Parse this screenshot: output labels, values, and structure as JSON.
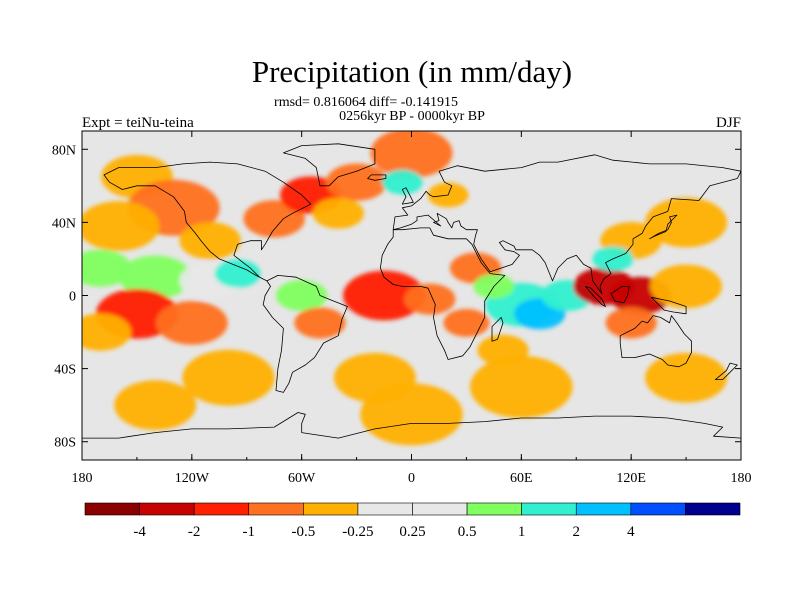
{
  "chart_data": {
    "type": "heatmap",
    "title": "Precipitation (in mm/day)",
    "stats_line": "rmsd= 0.816064 diff= -0.141915",
    "period": "0256kyr BP - 0000kyr BP",
    "left_label": "Expt = teiNu-teina",
    "right_label": "DJF",
    "x_ticks": [
      {
        "value": -180,
        "label": "180"
      },
      {
        "value": -120,
        "label": "120W"
      },
      {
        "value": -60,
        "label": "60W"
      },
      {
        "value": 0,
        "label": "0"
      },
      {
        "value": 60,
        "label": "60E"
      },
      {
        "value": 120,
        "label": "120E"
      },
      {
        "value": 180,
        "label": "180"
      }
    ],
    "y_ticks": [
      {
        "value": 80,
        "label": "80N"
      },
      {
        "value": 40,
        "label": "40N"
      },
      {
        "value": 0,
        "label": "0"
      },
      {
        "value": -40,
        "label": "40S"
      },
      {
        "value": -80,
        "label": "80S"
      }
    ],
    "xlim": [
      -180,
      180
    ],
    "ylim": [
      -90,
      90
    ],
    "colorbar": {
      "colors": [
        "#8c0000",
        "#c80000",
        "#ff2000",
        "#ff7020",
        "#ffb000",
        "#e8e8e8",
        "#e8e8e8",
        "#80ff60",
        "#30f0d0",
        "#00c0ff",
        "#0050ff",
        "#000090"
      ],
      "labels": [
        "-4",
        "-2",
        "-1",
        "-0.5",
        "-0.25",
        "0.25",
        "0.5",
        "1",
        "2",
        "4"
      ]
    },
    "anomalies": [
      {
        "lon": -150,
        "lat": 65,
        "r": 14,
        "value": -0.4
      },
      {
        "lon": -130,
        "lat": 48,
        "r": 18,
        "value": -0.7
      },
      {
        "lon": -160,
        "lat": 38,
        "r": 16,
        "value": -0.5
      },
      {
        "lon": -110,
        "lat": 30,
        "r": 12,
        "value": -0.3
      },
      {
        "lon": -75,
        "lat": 42,
        "r": 12,
        "value": -0.7
      },
      {
        "lon": -55,
        "lat": 55,
        "r": 12,
        "value": -1.2
      },
      {
        "lon": -30,
        "lat": 62,
        "r": 12,
        "value": -1.0
      },
      {
        "lon": -40,
        "lat": 45,
        "r": 10,
        "value": -0.3
      },
      {
        "lon": 0,
        "lat": 78,
        "r": 16,
        "value": -0.6
      },
      {
        "lon": -5,
        "lat": 62,
        "r": 8,
        "value": 1.5
      },
      {
        "lon": 20,
        "lat": 55,
        "r": 8,
        "value": -0.3
      },
      {
        "lon": 150,
        "lat": 40,
        "r": 16,
        "value": -0.4
      },
      {
        "lon": 120,
        "lat": 30,
        "r": 12,
        "value": -0.3
      },
      {
        "lon": -170,
        "lat": 15,
        "r": 12,
        "value": 0.6
      },
      {
        "lon": -140,
        "lat": 10,
        "r": 14,
        "value": 0.6
      },
      {
        "lon": -110,
        "lat": 8,
        "r": 12,
        "value": 0.4
      },
      {
        "lon": -95,
        "lat": 12,
        "r": 9,
        "value": 1.5
      },
      {
        "lon": -150,
        "lat": -10,
        "r": 16,
        "value": -1.2
      },
      {
        "lon": -120,
        "lat": -15,
        "r": 14,
        "value": -0.6
      },
      {
        "lon": -170,
        "lat": -20,
        "r": 12,
        "value": -0.5
      },
      {
        "lon": -60,
        "lat": 0,
        "r": 10,
        "value": 0.8
      },
      {
        "lon": -50,
        "lat": -15,
        "r": 10,
        "value": -0.6
      },
      {
        "lon": -15,
        "lat": 0,
        "r": 16,
        "value": -1.2
      },
      {
        "lon": 10,
        "lat": -2,
        "r": 10,
        "value": -0.8
      },
      {
        "lon": 30,
        "lat": -15,
        "r": 9,
        "value": -0.7
      },
      {
        "lon": 35,
        "lat": 15,
        "r": 10,
        "value": -0.6
      },
      {
        "lon": 60,
        "lat": -5,
        "r": 14,
        "value": 1.8
      },
      {
        "lon": 70,
        "lat": -10,
        "r": 10,
        "value": 3.0
      },
      {
        "lon": 85,
        "lat": 0,
        "r": 10,
        "value": 1.2
      },
      {
        "lon": 50,
        "lat": -30,
        "r": 10,
        "value": -0.5
      },
      {
        "lon": 45,
        "lat": 5,
        "r": 8,
        "value": 0.6
      },
      {
        "lon": 105,
        "lat": 5,
        "r": 12,
        "value": -3.0
      },
      {
        "lon": 125,
        "lat": 0,
        "r": 12,
        "value": -2.5
      },
      {
        "lon": 110,
        "lat": 20,
        "r": 8,
        "value": 1.5
      },
      {
        "lon": 150,
        "lat": 5,
        "r": 14,
        "value": -0.5
      },
      {
        "lon": 120,
        "lat": -15,
        "r": 10,
        "value": -1.0
      },
      {
        "lon": -100,
        "lat": -45,
        "r": 18,
        "value": -0.3
      },
      {
        "lon": -20,
        "lat": -45,
        "r": 16,
        "value": -0.3
      },
      {
        "lon": 60,
        "lat": -50,
        "r": 20,
        "value": -0.3
      },
      {
        "lon": 150,
        "lat": -45,
        "r": 16,
        "value": -0.3
      },
      {
        "lon": -140,
        "lat": -60,
        "r": 16,
        "value": -0.3
      },
      {
        "lon": 0,
        "lat": -65,
        "r": 20,
        "value": -0.3
      }
    ],
    "land_outlines": [
      [
        [
          -168,
          66
        ],
        [
          -160,
          70
        ],
        [
          -140,
          70
        ],
        [
          -125,
          72
        ],
        [
          -110,
          73
        ],
        [
          -95,
          72
        ],
        [
          -80,
          68
        ],
        [
          -70,
          62
        ],
        [
          -60,
          55
        ],
        [
          -55,
          50
        ],
        [
          -65,
          45
        ],
        [
          -70,
          42
        ],
        [
          -76,
          35
        ],
        [
          -80,
          28
        ],
        [
          -82,
          25
        ],
        [
          -82,
          30
        ],
        [
          -88,
          30
        ],
        [
          -95,
          28
        ],
        [
          -97,
          22
        ],
        [
          -92,
          18
        ],
        [
          -88,
          15
        ],
        [
          -83,
          10
        ],
        [
          -79,
          8
        ],
        [
          -85,
          11
        ],
        [
          -90,
          14
        ],
        [
          -95,
          16
        ],
        [
          -105,
          20
        ],
        [
          -110,
          24
        ],
        [
          -115,
          30
        ],
        [
          -118,
          34
        ],
        [
          -123,
          40
        ],
        [
          -124,
          46
        ],
        [
          -130,
          54
        ],
        [
          -140,
          60
        ],
        [
          -150,
          60
        ],
        [
          -158,
          58
        ],
        [
          -165,
          62
        ],
        [
          -168,
          66
        ]
      ],
      [
        [
          -79,
          8
        ],
        [
          -73,
          11
        ],
        [
          -63,
          10
        ],
        [
          -52,
          5
        ],
        [
          -50,
          0
        ],
        [
          -45,
          -2
        ],
        [
          -35,
          -6
        ],
        [
          -38,
          -13
        ],
        [
          -40,
          -22
        ],
        [
          -48,
          -26
        ],
        [
          -53,
          -34
        ],
        [
          -58,
          -38
        ],
        [
          -65,
          -42
        ],
        [
          -67,
          -48
        ],
        [
          -70,
          -53
        ],
        [
          -74,
          -52
        ],
        [
          -73,
          -40
        ],
        [
          -71,
          -30
        ],
        [
          -70,
          -18
        ],
        [
          -76,
          -12
        ],
        [
          -81,
          -5
        ],
        [
          -80,
          0
        ],
        [
          -77,
          5
        ],
        [
          -79,
          8
        ]
      ],
      [
        [
          -50,
          60
        ],
        [
          -45,
          60
        ],
        [
          -40,
          65
        ],
        [
          -30,
          68
        ],
        [
          -20,
          72
        ],
        [
          -20,
          80
        ],
        [
          -40,
          83
        ],
        [
          -60,
          82
        ],
        [
          -70,
          78
        ],
        [
          -58,
          75
        ],
        [
          -52,
          70
        ],
        [
          -50,
          60
        ]
      ],
      [
        [
          -10,
          36
        ],
        [
          -5,
          36
        ],
        [
          5,
          37
        ],
        [
          10,
          37
        ],
        [
          12,
          33
        ],
        [
          20,
          31
        ],
        [
          30,
          31
        ],
        [
          33,
          28
        ],
        [
          38,
          18
        ],
        [
          43,
          12
        ],
        [
          51,
          11
        ],
        [
          45,
          5
        ],
        [
          40,
          -3
        ],
        [
          40,
          -12
        ],
        [
          35,
          -22
        ],
        [
          32,
          -28
        ],
        [
          28,
          -33
        ],
        [
          20,
          -35
        ],
        [
          18,
          -30
        ],
        [
          14,
          -22
        ],
        [
          12,
          -12
        ],
        [
          13,
          -5
        ],
        [
          9,
          4
        ],
        [
          5,
          5
        ],
        [
          -5,
          5
        ],
        [
          -10,
          6
        ],
        [
          -15,
          10
        ],
        [
          -17,
          15
        ],
        [
          -16,
          22
        ],
        [
          -13,
          28
        ],
        [
          -10,
          32
        ],
        [
          -10,
          36
        ]
      ],
      [
        [
          -10,
          36
        ],
        [
          -9,
          43
        ],
        [
          -2,
          44
        ],
        [
          -5,
          48
        ],
        [
          0,
          49
        ],
        [
          5,
          53
        ],
        [
          8,
          57
        ],
        [
          10,
          55
        ],
        [
          12,
          54
        ],
        [
          20,
          55
        ],
        [
          22,
          60
        ],
        [
          18,
          62
        ],
        [
          15,
          68
        ],
        [
          25,
          71
        ],
        [
          40,
          68
        ],
        [
          60,
          70
        ],
        [
          70,
          73
        ],
        [
          80,
          73
        ],
        [
          100,
          77
        ],
        [
          110,
          74
        ],
        [
          130,
          72
        ],
        [
          150,
          72
        ],
        [
          170,
          70
        ],
        [
          180,
          68
        ],
        [
          178,
          64
        ],
        [
          163,
          60
        ],
        [
          157,
          52
        ],
        [
          142,
          53
        ],
        [
          140,
          46
        ],
        [
          132,
          43
        ],
        [
          128,
          38
        ],
        [
          126,
          34
        ],
        [
          121,
          31
        ],
        [
          121,
          28
        ],
        [
          117,
          23
        ],
        [
          110,
          20
        ],
        [
          106,
          18
        ],
        [
          109,
          12
        ],
        [
          105,
          9
        ],
        [
          103,
          5
        ],
        [
          104,
          1
        ],
        [
          99,
          8
        ],
        [
          98,
          15
        ],
        [
          94,
          17
        ],
        [
          90,
          22
        ],
        [
          85,
          20
        ],
        [
          80,
          15
        ],
        [
          77,
          8
        ],
        [
          73,
          18
        ],
        [
          70,
          22
        ],
        [
          66,
          25
        ],
        [
          57,
          25
        ],
        [
          56,
          27
        ],
        [
          50,
          30
        ],
        [
          48,
          29
        ],
        [
          51,
          25
        ],
        [
          56,
          24
        ],
        [
          59,
          22
        ],
        [
          55,
          17
        ],
        [
          43,
          13
        ],
        [
          38,
          20
        ],
        [
          34,
          28
        ],
        [
          35,
          33
        ],
        [
          36,
          36
        ],
        [
          30,
          36
        ],
        [
          27,
          38
        ],
        [
          26,
          41
        ],
        [
          23,
          40
        ],
        [
          22,
          37
        ],
        [
          20,
          40
        ],
        [
          19,
          42
        ],
        [
          14,
          45
        ],
        [
          15,
          41
        ],
        [
          12,
          40
        ],
        [
          16,
          38
        ],
        [
          9,
          44
        ],
        [
          3,
          43
        ],
        [
          3,
          41
        ],
        [
          0,
          39
        ],
        [
          -6,
          37
        ],
        [
          -10,
          36
        ]
      ],
      [
        [
          114,
          -22
        ],
        [
          114,
          -26
        ],
        [
          115,
          -34
        ],
        [
          122,
          -34
        ],
        [
          130,
          -32
        ],
        [
          137,
          -35
        ],
        [
          140,
          -38
        ],
        [
          146,
          -39
        ],
        [
          150,
          -37
        ],
        [
          153,
          -31
        ],
        [
          153,
          -25
        ],
        [
          149,
          -21
        ],
        [
          145,
          -15
        ],
        [
          142,
          -11
        ],
        [
          141,
          -15
        ],
        [
          136,
          -12
        ],
        [
          132,
          -11
        ],
        [
          129,
          -15
        ],
        [
          126,
          -14
        ],
        [
          122,
          -18
        ],
        [
          114,
          -22
        ]
      ],
      [
        [
          95,
          5
        ],
        [
          98,
          4
        ],
        [
          104,
          -2
        ],
        [
          106,
          -6
        ],
        [
          104,
          -5
        ],
        [
          100,
          -1
        ],
        [
          95,
          5
        ]
      ],
      [
        [
          109,
          1
        ],
        [
          115,
          5
        ],
        [
          119,
          5
        ],
        [
          118,
          0
        ],
        [
          116,
          -4
        ],
        [
          111,
          -3
        ],
        [
          109,
          1
        ]
      ],
      [
        [
          131,
          -1
        ],
        [
          141,
          -3
        ],
        [
          150,
          -6
        ],
        [
          150,
          -10
        ],
        [
          143,
          -9
        ],
        [
          138,
          -8
        ],
        [
          131,
          -1
        ]
      ],
      [
        [
          130,
          31
        ],
        [
          135,
          34
        ],
        [
          140,
          36
        ],
        [
          142,
          40
        ],
        [
          141,
          43
        ],
        [
          145,
          44
        ],
        [
          140,
          39
        ],
        [
          139,
          35
        ],
        [
          134,
          33
        ],
        [
          130,
          31
        ]
      ],
      [
        [
          -5,
          50
        ],
        [
          -3,
          54
        ],
        [
          -5,
          58
        ],
        [
          -3,
          59
        ],
        [
          0,
          53
        ],
        [
          1,
          51
        ],
        [
          -5,
          50
        ]
      ],
      [
        [
          44,
          -25
        ],
        [
          47,
          -24
        ],
        [
          50,
          -15
        ],
        [
          49,
          -12
        ],
        [
          44,
          -17
        ],
        [
          44,
          -25
        ]
      ],
      [
        [
          166,
          -46
        ],
        [
          172,
          -41
        ],
        [
          174,
          -37
        ],
        [
          178,
          -38
        ],
        [
          174,
          -42
        ],
        [
          170,
          -46
        ],
        [
          166,
          -46
        ]
      ],
      [
        [
          -24,
          64
        ],
        [
          -22,
          66
        ],
        [
          -14,
          66
        ],
        [
          -14,
          64
        ],
        [
          -20,
          63
        ],
        [
          -24,
          64
        ]
      ]
    ],
    "antarctica": [
      [
        -180,
        -78
      ],
      [
        -160,
        -78
      ],
      [
        -140,
        -75
      ],
      [
        -120,
        -73
      ],
      [
        -100,
        -73
      ],
      [
        -75,
        -72
      ],
      [
        -62,
        -64
      ],
      [
        -58,
        -65
      ],
      [
        -60,
        -70
      ],
      [
        -60,
        -75
      ],
      [
        -40,
        -78
      ],
      [
        -20,
        -73
      ],
      [
        0,
        -70
      ],
      [
        20,
        -70
      ],
      [
        40,
        -69
      ],
      [
        60,
        -67
      ],
      [
        80,
        -67
      ],
      [
        100,
        -66
      ],
      [
        120,
        -66
      ],
      [
        140,
        -67
      ],
      [
        160,
        -70
      ],
      [
        170,
        -72
      ],
      [
        165,
        -77
      ],
      [
        180,
        -78
      ]
    ]
  }
}
